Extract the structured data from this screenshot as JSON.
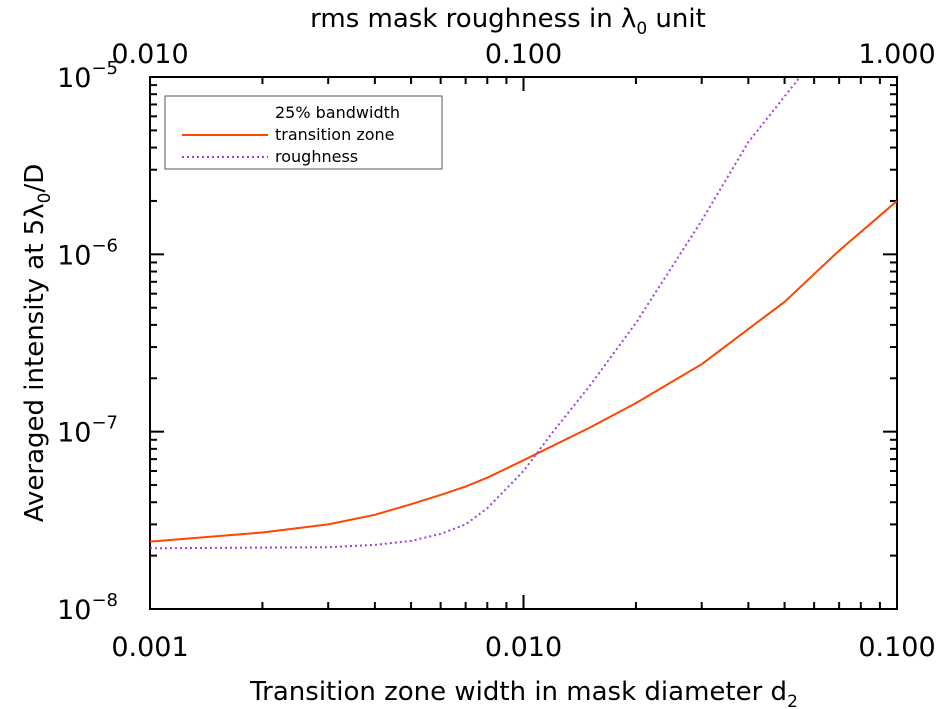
{
  "chart_data": {
    "type": "line",
    "bottom_axis": {
      "label": "Transition zone width in mask diameter d",
      "label_subscript": "2",
      "scale": "log",
      "range": [
        0.001,
        0.1
      ],
      "ticks": [
        {
          "value": 0.001,
          "label": "0.001"
        },
        {
          "value": 0.01,
          "label": "0.010"
        },
        {
          "value": 0.1,
          "label": "0.100"
        }
      ]
    },
    "top_axis": {
      "label_pre": "rms mask roughness in ",
      "label_symbol": "λ",
      "label_subscript": "0",
      "label_post": " unit",
      "scale": "log",
      "range": [
        0.01,
        1.0
      ],
      "ticks": [
        {
          "value": 0.01,
          "label": "0.010"
        },
        {
          "value": 0.1,
          "label": "0.100"
        },
        {
          "value": 1.0,
          "label": "1.000"
        }
      ]
    },
    "y_axis": {
      "label_pre": "Averaged intensity at 5",
      "label_symbol": "λ",
      "label_subscript": "0",
      "label_post": "/D",
      "scale": "log",
      "range": [
        1e-08,
        1e-05
      ],
      "ticks": [
        {
          "value": 1e-08,
          "base": "10",
          "exp": "−8"
        },
        {
          "value": 1e-07,
          "base": "10",
          "exp": "−7"
        },
        {
          "value": 1e-06,
          "base": "10",
          "exp": "−6"
        },
        {
          "value": 1e-05,
          "base": "10",
          "exp": "−5"
        }
      ]
    },
    "legend": {
      "title": "25% bandwidth",
      "position": "top-left"
    },
    "series": [
      {
        "name": "transition zone",
        "color": "#ff4500",
        "style": "solid",
        "axis": "bottom",
        "x": [
          0.001,
          0.002,
          0.003,
          0.004,
          0.005,
          0.006,
          0.007,
          0.008,
          0.009,
          0.01,
          0.015,
          0.02,
          0.03,
          0.05,
          0.07,
          0.1
        ],
        "y": [
          2.4e-08,
          2.7e-08,
          3e-08,
          3.4e-08,
          3.9e-08,
          4.4e-08,
          4.9e-08,
          5.5e-08,
          6.2e-08,
          6.9e-08,
          1.05e-07,
          1.45e-07,
          2.4e-07,
          5.4e-07,
          1.05e-06,
          2e-06
        ]
      },
      {
        "name": "roughness",
        "color": "#a040e0",
        "style": "dotted",
        "axis": "top",
        "x": [
          0.01,
          0.02,
          0.03,
          0.04,
          0.05,
          0.06,
          0.07,
          0.08,
          0.1,
          0.12,
          0.15,
          0.2,
          0.3,
          0.4,
          0.55
        ],
        "y": [
          2.2e-08,
          2.22e-08,
          2.23e-08,
          2.3e-08,
          2.42e-08,
          2.65e-08,
          3e-08,
          3.7e-08,
          6e-08,
          1e-07,
          1.8e-07,
          4.1e-07,
          1.55e-06,
          4.3e-06,
          1e-05
        ]
      }
    ]
  }
}
